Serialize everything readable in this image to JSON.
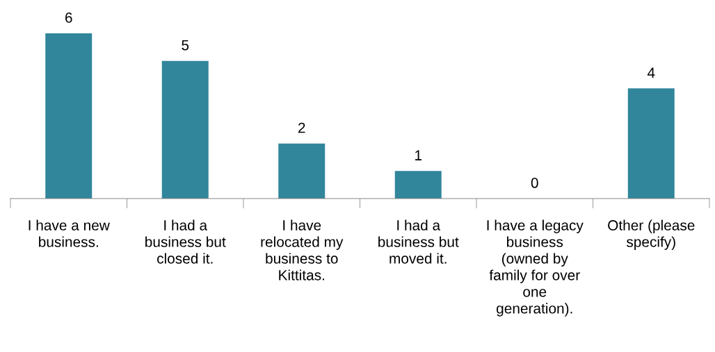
{
  "chart_data": {
    "type": "bar",
    "categories": [
      "I have a new\nbusiness.",
      "I had a\nbusiness but\nclosed it.",
      "I have\nrelocated my\nbusiness to\nKittitas.",
      "I had a\nbusiness but\nmoved it.",
      "I have a legacy\nbusiness\n(owned by\nfamily for over\none\ngeneration).",
      "Other (please\nspecify)"
    ],
    "values": [
      6,
      5,
      2,
      1,
      0,
      4
    ],
    "color": "#31869b",
    "data_labels": true,
    "grid": false,
    "legend": false
  }
}
